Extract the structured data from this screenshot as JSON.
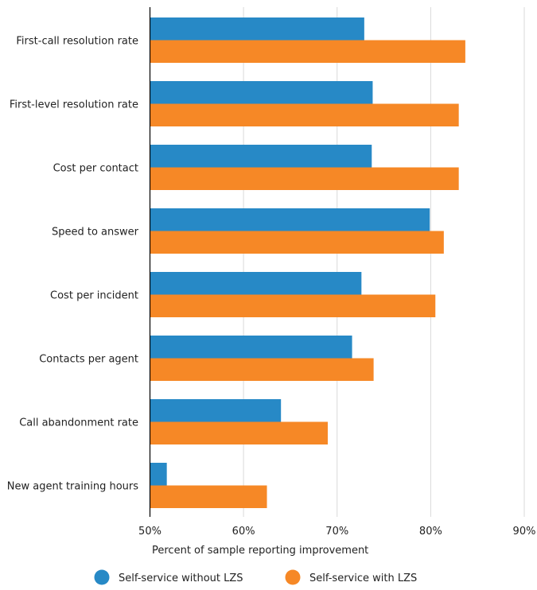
{
  "chart_data": {
    "type": "bar",
    "orientation": "horizontal",
    "title": "",
    "categories": [
      "First-call resolution rate",
      "First-level resolution rate",
      "Cost per contact",
      "Speed to answer",
      "Cost per incident",
      "Contacts per agent",
      "Call abandonment rate",
      "New agent training hours"
    ],
    "series": [
      {
        "name": "Self-service without LZS",
        "color": "#2789C6",
        "values": [
          72.9,
          73.8,
          73.7,
          79.9,
          72.6,
          71.6,
          64.0,
          51.8
        ]
      },
      {
        "name": "Self-service with LZS",
        "color": "#F68826",
        "values": [
          83.7,
          83.0,
          83.0,
          81.4,
          80.5,
          73.9,
          69.0,
          62.5
        ]
      }
    ],
    "xlabel": "Percent of sample reporting improvement",
    "ylabel": "",
    "xlim": [
      50,
      90
    ],
    "xticks": [
      50,
      60,
      70,
      80,
      90
    ],
    "xtick_labels": [
      "50%",
      "60%",
      "70%",
      "80%",
      "90%"
    ],
    "grid": true,
    "legend": "bottom"
  }
}
